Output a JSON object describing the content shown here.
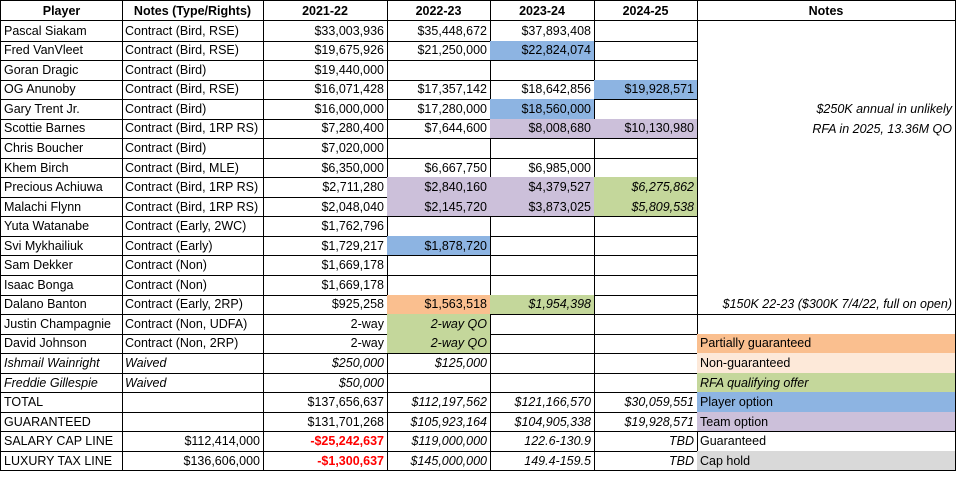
{
  "table": {
    "header": [
      "Player",
      "Notes (Type/Rights)",
      "2021-22",
      "2022-23",
      "2023-24",
      "2024-25",
      "Notes"
    ],
    "rows": [
      [
        "Pascal Siakam",
        "Contract (Bird, RSE)",
        "$33,003,936",
        "$35,448,672",
        "$37,893,408",
        null,
        null
      ],
      [
        "Fred VanVleet",
        "Contract (Bird, RSE)",
        "$19,675,926",
        "$21,250,000",
        "$22,824,074",
        null,
        null
      ],
      [
        "Goran Dragic",
        "Contract (Bird)",
        "$19,440,000",
        null,
        null,
        null,
        null
      ],
      [
        "OG Anunoby",
        "Contract (Bird, RSE)",
        "$16,071,428",
        "$17,357,142",
        "$18,642,856",
        "$19,928,571",
        null
      ],
      [
        "Gary Trent Jr.",
        "Contract (Bird)",
        "$16,000,000",
        "$17,280,000",
        "$18,560,000",
        null,
        "$250K annual in unlikely"
      ],
      [
        "Scottie Barnes",
        "Contract (Bird, 1RP RS)",
        "$7,280,400",
        "$7,644,600",
        "$8,008,680",
        "$10,130,980",
        "RFA in 2025, 13.36M QO"
      ],
      [
        "Chris Boucher",
        "Contract (Bird)",
        "$7,020,000",
        null,
        null,
        null,
        null
      ],
      [
        "Khem Birch",
        "Contract (Bird, MLE)",
        "$6,350,000",
        "$6,667,750",
        "$6,985,000",
        null,
        null
      ],
      [
        "Precious Achiuwa",
        "Contract (Bird, 1RP RS)",
        "$2,711,280",
        "$2,840,160",
        "$4,379,527",
        "$6,275,862",
        null
      ],
      [
        "Malachi Flynn",
        "Contract (Bird, 1RP RS)",
        "$2,048,040",
        "$2,145,720",
        "$3,873,025",
        "$5,809,538",
        null
      ],
      [
        "Yuta Watanabe",
        "Contract (Early, 2WC)",
        "$1,762,796",
        null,
        null,
        null,
        null
      ],
      [
        "Svi Mykhailiuk",
        "Contract (Early)",
        "$1,729,217",
        "$1,878,720",
        null,
        null,
        null
      ],
      [
        "Sam Dekker",
        "Contract (Non)",
        "$1,669,178",
        null,
        null,
        null,
        null
      ],
      [
        "Isaac Bonga",
        "Contract (Non)",
        "$1,669,178",
        null,
        null,
        null,
        null
      ],
      [
        "Dalano Banton",
        "Contract (Early, 2RP)",
        "$925,258",
        "$1,563,518",
        "$1,954,398",
        null,
        "$150K 22-23 ($300K 7/4/22, full on open)"
      ],
      [
        "Justin Champagnie",
        "Contract (Non, UDFA)",
        "2-way",
        "2-way QO",
        null,
        null,
        null
      ],
      [
        "David Johnson",
        "Contract (Non, 2RP)",
        "2-way",
        "2-way QO",
        null,
        null,
        "Partially guaranteed"
      ],
      [
        "Ishmail Wainright",
        "Waived",
        "$250,000",
        "$125,000",
        null,
        null,
        "Non-guaranteed"
      ],
      [
        "Freddie Gillespie",
        "Waived",
        "$50,000",
        null,
        null,
        null,
        "RFA qualifying offer"
      ],
      [
        "TOTAL",
        null,
        "$137,656,637",
        "$112,197,562",
        "$121,166,570",
        "$30,059,551",
        "Player option"
      ],
      [
        "GUARANTEED",
        null,
        "$131,701,268",
        "$105,923,164",
        "$104,905,338",
        "$19,928,571",
        "Team option"
      ],
      [
        "SALARY CAP LINE",
        "$112,414,000",
        "-$25,242,637",
        "$119,000,000",
        "122.6-130.9",
        "TBD",
        "Guaranteed"
      ],
      [
        "LUXURY TAX LINE",
        "$136,606,000",
        "-$1,300,637",
        "$145,000,000",
        "149.4-159.5",
        "TBD",
        "Cap hold"
      ]
    ]
  }
}
